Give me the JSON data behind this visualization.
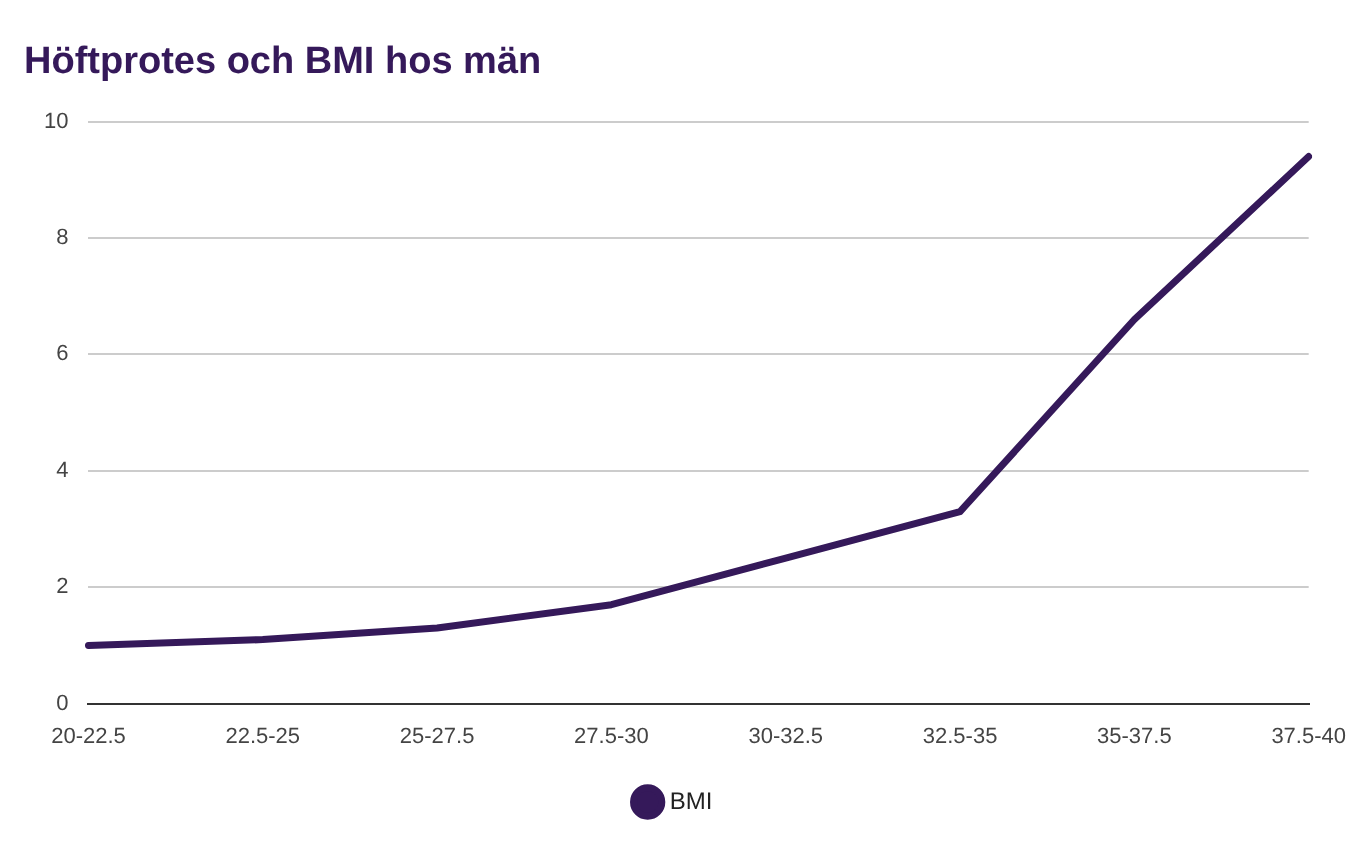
{
  "chart_data": {
    "type": "line",
    "title": "Höftprotes och BMI hos män",
    "categories": [
      "20-22.5",
      "22.5-25",
      "25-27.5",
      "27.5-30",
      "30-32.5",
      "32.5-35",
      "35-37.5",
      "37.5-40"
    ],
    "series": [
      {
        "name": "BMI",
        "color": "#35195a",
        "values": [
          1.0,
          1.1,
          1.3,
          1.7,
          2.5,
          3.3,
          6.6,
          9.4
        ]
      }
    ],
    "ylim": [
      0,
      10
    ],
    "yticks": [
      0,
      2,
      4,
      6,
      8,
      10
    ],
    "grid": "y",
    "legend": "bottom",
    "marker": "none"
  }
}
